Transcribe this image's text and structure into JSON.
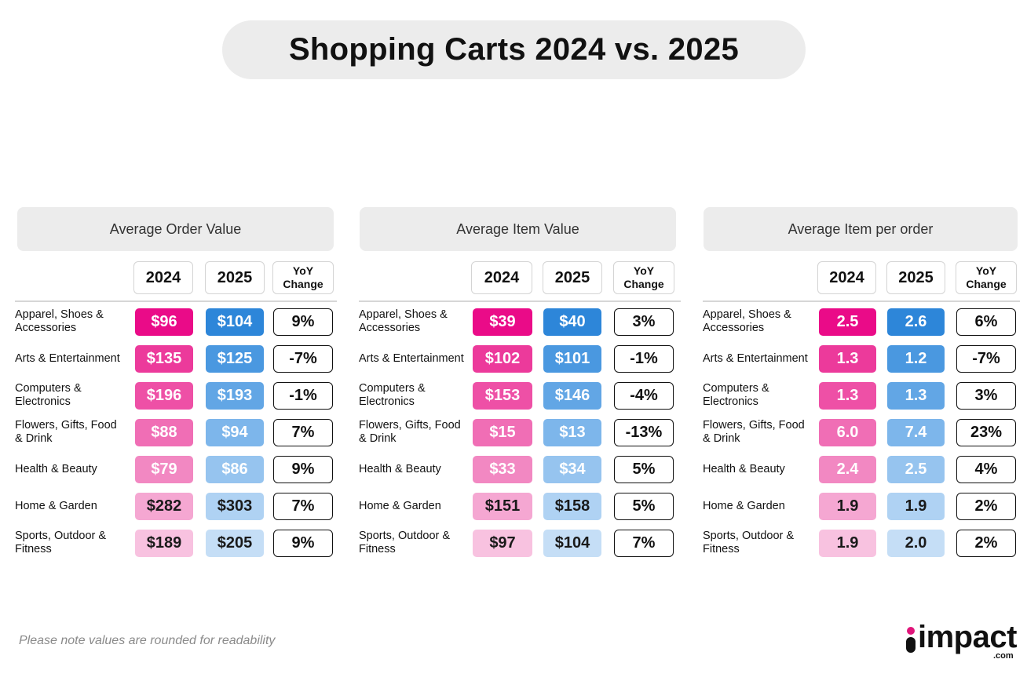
{
  "title": "Shopping Carts 2024 vs. 2025",
  "footnote": "Please note values are rounded for readability",
  "logo": {
    "text": "impact",
    "suffix": ".com"
  },
  "colors": {
    "pink_shades": [
      "#ea0b88",
      "#ec3a9b",
      "#ee50a6",
      "#f06eb5",
      "#f288c2",
      "#f5a7d2",
      "#f8c2e0"
    ],
    "blue_shades": [
      "#2d86d9",
      "#4a98e0",
      "#62a6e5",
      "#7db6eb",
      "#96c4ef",
      "#afd2f3",
      "#c5def6"
    ]
  },
  "chart_data": [
    {
      "type": "table",
      "title": "Average Order Value",
      "column_headers": {
        "y2024": "2024",
        "y2025": "2025",
        "yoy": "YoY Change"
      },
      "rows": [
        {
          "category": "Apparel, Shoes & Accessories",
          "y2024": "$96",
          "y2025": "$104",
          "yoy": "9%"
        },
        {
          "category": "Arts & Entertainment",
          "y2024": "$135",
          "y2025": "$125",
          "yoy": "-7%"
        },
        {
          "category": "Computers & Electronics",
          "y2024": "$196",
          "y2025": "$193",
          "yoy": "-1%"
        },
        {
          "category": "Flowers, Gifts, Food & Drink",
          "y2024": "$88",
          "y2025": "$94",
          "yoy": "7%"
        },
        {
          "category": "Health & Beauty",
          "y2024": "$79",
          "y2025": "$86",
          "yoy": "9%"
        },
        {
          "category": "Home & Garden",
          "y2024": "$282",
          "y2025": "$303",
          "yoy": "7%"
        },
        {
          "category": "Sports, Outdoor & Fitness",
          "y2024": "$189",
          "y2025": "$205",
          "yoy": "9%"
        }
      ]
    },
    {
      "type": "table",
      "title": "Average Item Value",
      "column_headers": {
        "y2024": "2024",
        "y2025": "2025",
        "yoy": "YoY Change"
      },
      "rows": [
        {
          "category": "Apparel, Shoes & Accessories",
          "y2024": "$39",
          "y2025": "$40",
          "yoy": "3%"
        },
        {
          "category": "Arts & Entertainment",
          "y2024": "$102",
          "y2025": "$101",
          "yoy": "-1%"
        },
        {
          "category": "Computers & Electronics",
          "y2024": "$153",
          "y2025": "$146",
          "yoy": "-4%"
        },
        {
          "category": "Flowers, Gifts, Food & Drink",
          "y2024": "$15",
          "y2025": "$13",
          "yoy": "-13%"
        },
        {
          "category": "Health & Beauty",
          "y2024": "$33",
          "y2025": "$34",
          "yoy": "5%"
        },
        {
          "category": "Home & Garden",
          "y2024": "$151",
          "y2025": "$158",
          "yoy": "5%"
        },
        {
          "category": "Sports, Outdoor & Fitness",
          "y2024": "$97",
          "y2025": "$104",
          "yoy": "7%"
        }
      ]
    },
    {
      "type": "table",
      "title": "Average Item per order",
      "column_headers": {
        "y2024": "2024",
        "y2025": "2025",
        "yoy": "YoY Change"
      },
      "rows": [
        {
          "category": "Apparel, Shoes & Accessories",
          "y2024": "2.5",
          "y2025": "2.6",
          "yoy": "6%"
        },
        {
          "category": "Arts & Entertainment",
          "y2024": "1.3",
          "y2025": "1.2",
          "yoy": "-7%"
        },
        {
          "category": "Computers & Electronics",
          "y2024": "1.3",
          "y2025": "1.3",
          "yoy": "3%"
        },
        {
          "category": "Flowers, Gifts, Food & Drink",
          "y2024": "6.0",
          "y2025": "7.4",
          "yoy": "23%"
        },
        {
          "category": "Health & Beauty",
          "y2024": "2.4",
          "y2025": "2.5",
          "yoy": "4%"
        },
        {
          "category": "Home & Garden",
          "y2024": "1.9",
          "y2025": "1.9",
          "yoy": "2%"
        },
        {
          "category": "Sports, Outdoor & Fitness",
          "y2024": "1.9",
          "y2025": "2.0",
          "yoy": "2%"
        }
      ]
    }
  ]
}
